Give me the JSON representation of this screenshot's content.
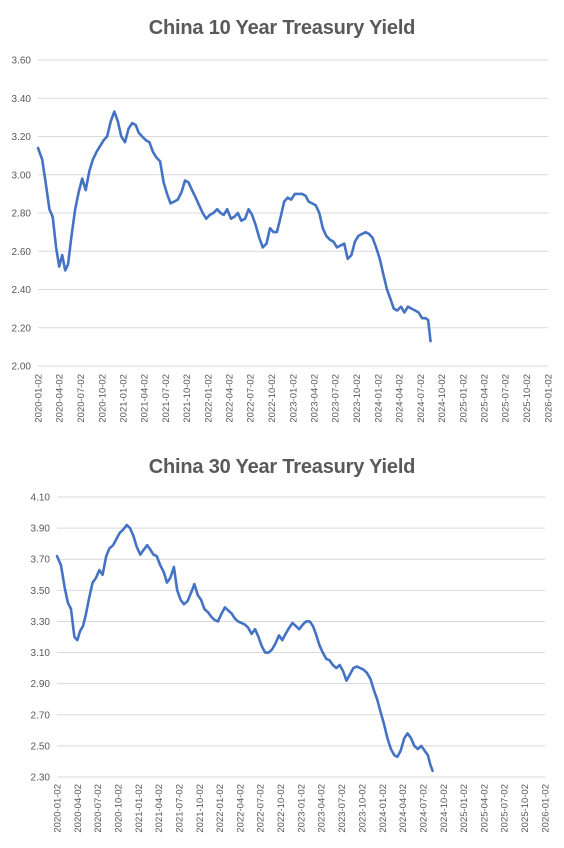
{
  "charts": [
    {
      "title": "China 10 Year Treasury Yield"
    },
    {
      "title": "China 30 Year Treasury Yield"
    }
  ],
  "chart_data": [
    {
      "type": "line",
      "title": "China 10 Year Treasury Yield",
      "xlabel": "",
      "ylabel": "",
      "ylim": [
        2.0,
        3.6
      ],
      "y_ticks": [
        "2.00",
        "2.20",
        "2.40",
        "2.60",
        "2.80",
        "3.00",
        "3.20",
        "3.40",
        "3.60"
      ],
      "x_ticks": [
        "2020-01-02",
        "2020-04-02",
        "2020-07-02",
        "2020-10-02",
        "2021-01-02",
        "2021-04-02",
        "2021-07-02",
        "2021-10-02",
        "2022-01-02",
        "2022-04-02",
        "2022-07-02",
        "2022-10-02",
        "2023-01-02",
        "2023-04-02",
        "2023-07-02",
        "2023-10-02",
        "2024-01-02",
        "2024-04-02",
        "2024-07-02",
        "2024-10-02",
        "2025-01-02",
        "2025-04-02",
        "2025-07-02",
        "2025-10-02",
        "2026-01-02"
      ],
      "grid": true,
      "line_color": "#4472C4",
      "series": [
        {
          "x": [
            "2020-01-02",
            "2020-01-20",
            "2020-02-05",
            "2020-02-20",
            "2020-03-05",
            "2020-03-20",
            "2020-04-02",
            "2020-04-15",
            "2020-04-28",
            "2020-05-10",
            "2020-05-25",
            "2020-06-10",
            "2020-06-25",
            "2020-07-10",
            "2020-07-25",
            "2020-08-10",
            "2020-08-25",
            "2020-09-10",
            "2020-09-25",
            "2020-10-10",
            "2020-10-25",
            "2020-11-10",
            "2020-11-25",
            "2020-12-10",
            "2020-12-25",
            "2021-01-10",
            "2021-01-25",
            "2021-02-10",
            "2021-02-25",
            "2021-03-10",
            "2021-03-25",
            "2021-04-10",
            "2021-04-25",
            "2021-05-10",
            "2021-05-25",
            "2021-06-10",
            "2021-06-25",
            "2021-07-10",
            "2021-07-25",
            "2021-08-10",
            "2021-08-25",
            "2021-09-10",
            "2021-09-25",
            "2021-10-10",
            "2021-10-25",
            "2021-11-10",
            "2021-11-25",
            "2021-12-10",
            "2021-12-25",
            "2022-01-10",
            "2022-01-25",
            "2022-02-10",
            "2022-02-25",
            "2022-03-10",
            "2022-03-25",
            "2022-04-10",
            "2022-04-25",
            "2022-05-10",
            "2022-05-25",
            "2022-06-10",
            "2022-06-25",
            "2022-07-10",
            "2022-07-25",
            "2022-08-10",
            "2022-08-25",
            "2022-09-10",
            "2022-09-25",
            "2022-10-10",
            "2022-10-25",
            "2022-11-10",
            "2022-11-25",
            "2022-12-10",
            "2022-12-25",
            "2023-01-10",
            "2023-01-25",
            "2023-02-10",
            "2023-02-25",
            "2023-03-10",
            "2023-03-25",
            "2023-04-10",
            "2023-04-25",
            "2023-05-10",
            "2023-05-25",
            "2023-06-10",
            "2023-06-25",
            "2023-07-10",
            "2023-07-25",
            "2023-08-10",
            "2023-08-25",
            "2023-09-10",
            "2023-09-25",
            "2023-10-10",
            "2023-10-25",
            "2023-11-10",
            "2023-11-25",
            "2023-12-10",
            "2023-12-25",
            "2024-01-10",
            "2024-01-25",
            "2024-02-10",
            "2024-02-25",
            "2024-03-10",
            "2024-03-25",
            "2024-04-10",
            "2024-04-25",
            "2024-05-10",
            "2024-05-25",
            "2024-06-10",
            "2024-06-25",
            "2024-07-10",
            "2024-07-25",
            "2024-08-05",
            "2024-08-15"
          ],
          "y": [
            3.14,
            3.08,
            2.95,
            2.82,
            2.78,
            2.62,
            2.52,
            2.58,
            2.5,
            2.53,
            2.68,
            2.82,
            2.91,
            2.98,
            2.92,
            3.02,
            3.08,
            3.12,
            3.15,
            3.18,
            3.2,
            3.28,
            3.33,
            3.28,
            3.2,
            3.17,
            3.24,
            3.27,
            3.26,
            3.22,
            3.2,
            3.18,
            3.17,
            3.12,
            3.09,
            3.07,
            2.96,
            2.9,
            2.85,
            2.86,
            2.87,
            2.91,
            2.97,
            2.96,
            2.92,
            2.88,
            2.84,
            2.8,
            2.77,
            2.79,
            2.8,
            2.82,
            2.8,
            2.79,
            2.82,
            2.77,
            2.78,
            2.8,
            2.76,
            2.77,
            2.82,
            2.79,
            2.74,
            2.67,
            2.62,
            2.64,
            2.72,
            2.7,
            2.7,
            2.78,
            2.86,
            2.88,
            2.87,
            2.9,
            2.9,
            2.9,
            2.89,
            2.86,
            2.85,
            2.84,
            2.8,
            2.72,
            2.68,
            2.66,
            2.65,
            2.62,
            2.63,
            2.64,
            2.56,
            2.58,
            2.65,
            2.68,
            2.69,
            2.7,
            2.69,
            2.67,
            2.62,
            2.56,
            2.48,
            2.4,
            2.35,
            2.3,
            2.29,
            2.31,
            2.28,
            2.31,
            2.3,
            2.29,
            2.28,
            2.25,
            2.25,
            2.24,
            2.13
          ]
        }
      ]
    },
    {
      "type": "line",
      "title": "China 30 Year Treasury Yield",
      "xlabel": "",
      "ylabel": "",
      "ylim": [
        2.3,
        4.1
      ],
      "y_ticks": [
        "2.30",
        "2.50",
        "2.70",
        "2.90",
        "3.10",
        "3.30",
        "3.50",
        "3.70",
        "3.90",
        "4.10"
      ],
      "x_ticks": [
        "2020-01-02",
        "2020-04-02",
        "2020-07-02",
        "2020-10-02",
        "2021-01-02",
        "2021-04-02",
        "2021-07-02",
        "2021-10-02",
        "2022-01-02",
        "2022-04-02",
        "2022-07-02",
        "2022-10-02",
        "2023-01-02",
        "2023-04-02",
        "2023-07-02",
        "2023-10-02",
        "2024-01-02",
        "2024-04-02",
        "2024-07-02",
        "2024-10-02",
        "2025-01-02",
        "2025-04-02",
        "2025-07-02",
        "2025-10-02",
        "2026-01-02"
      ],
      "grid": true,
      "line_color": "#4472C4",
      "series": [
        {
          "x": [
            "2020-01-02",
            "2020-01-20",
            "2020-02-05",
            "2020-02-20",
            "2020-03-05",
            "2020-03-20",
            "2020-04-02",
            "2020-04-15",
            "2020-04-28",
            "2020-05-10",
            "2020-05-25",
            "2020-06-10",
            "2020-06-25",
            "2020-07-10",
            "2020-07-25",
            "2020-08-10",
            "2020-08-25",
            "2020-09-10",
            "2020-09-25",
            "2020-10-10",
            "2020-10-25",
            "2020-11-10",
            "2020-11-25",
            "2020-12-10",
            "2020-12-25",
            "2021-01-10",
            "2021-01-25",
            "2021-02-10",
            "2021-02-25",
            "2021-03-10",
            "2021-03-25",
            "2021-04-10",
            "2021-04-25",
            "2021-05-10",
            "2021-05-25",
            "2021-06-10",
            "2021-06-25",
            "2021-07-10",
            "2021-07-25",
            "2021-08-10",
            "2021-08-25",
            "2021-09-10",
            "2021-09-25",
            "2021-10-10",
            "2021-10-25",
            "2021-11-10",
            "2021-11-25",
            "2021-12-10",
            "2021-12-25",
            "2022-01-10",
            "2022-01-25",
            "2022-02-10",
            "2022-02-25",
            "2022-03-10",
            "2022-03-25",
            "2022-04-10",
            "2022-04-25",
            "2022-05-10",
            "2022-05-25",
            "2022-06-10",
            "2022-06-25",
            "2022-07-10",
            "2022-07-25",
            "2022-08-10",
            "2022-08-25",
            "2022-09-10",
            "2022-09-25",
            "2022-10-10",
            "2022-10-25",
            "2022-11-10",
            "2022-11-25",
            "2022-12-10",
            "2022-12-25",
            "2023-01-10",
            "2023-01-25",
            "2023-02-10",
            "2023-02-25",
            "2023-03-10",
            "2023-03-25",
            "2023-04-10",
            "2023-04-25",
            "2023-05-10",
            "2023-05-25",
            "2023-06-10",
            "2023-06-25",
            "2023-07-10",
            "2023-07-25",
            "2023-08-10",
            "2023-08-25",
            "2023-09-10",
            "2023-09-25",
            "2023-10-10",
            "2023-10-25",
            "2023-11-10",
            "2023-11-25",
            "2023-12-10",
            "2023-12-25",
            "2024-01-10",
            "2024-01-25",
            "2024-02-10",
            "2024-02-25",
            "2024-03-10",
            "2024-03-25",
            "2024-04-10",
            "2024-04-25",
            "2024-05-10",
            "2024-05-25",
            "2024-06-10",
            "2024-06-25",
            "2024-07-10",
            "2024-07-25",
            "2024-08-05",
            "2024-08-15"
          ],
          "y": [
            3.72,
            3.66,
            3.52,
            3.42,
            3.38,
            3.2,
            3.18,
            3.24,
            3.27,
            3.34,
            3.45,
            3.55,
            3.58,
            3.63,
            3.6,
            3.72,
            3.77,
            3.79,
            3.83,
            3.87,
            3.89,
            3.92,
            3.9,
            3.85,
            3.78,
            3.73,
            3.76,
            3.79,
            3.76,
            3.73,
            3.72,
            3.66,
            3.62,
            3.55,
            3.58,
            3.65,
            3.5,
            3.44,
            3.41,
            3.43,
            3.48,
            3.54,
            3.47,
            3.44,
            3.38,
            3.36,
            3.33,
            3.31,
            3.3,
            3.35,
            3.39,
            3.37,
            3.35,
            3.32,
            3.3,
            3.29,
            3.28,
            3.26,
            3.22,
            3.25,
            3.2,
            3.14,
            3.1,
            3.1,
            3.12,
            3.16,
            3.21,
            3.18,
            3.22,
            3.26,
            3.29,
            3.27,
            3.25,
            3.28,
            3.3,
            3.3,
            3.27,
            3.22,
            3.15,
            3.1,
            3.06,
            3.05,
            3.02,
            3.0,
            3.02,
            2.98,
            2.92,
            2.96,
            3.0,
            3.01,
            3.0,
            2.99,
            2.97,
            2.93,
            2.86,
            2.8,
            2.72,
            2.64,
            2.55,
            2.48,
            2.44,
            2.43,
            2.47,
            2.55,
            2.58,
            2.55,
            2.5,
            2.48,
            2.5,
            2.47,
            2.44,
            2.38,
            2.34
          ]
        }
      ]
    }
  ]
}
